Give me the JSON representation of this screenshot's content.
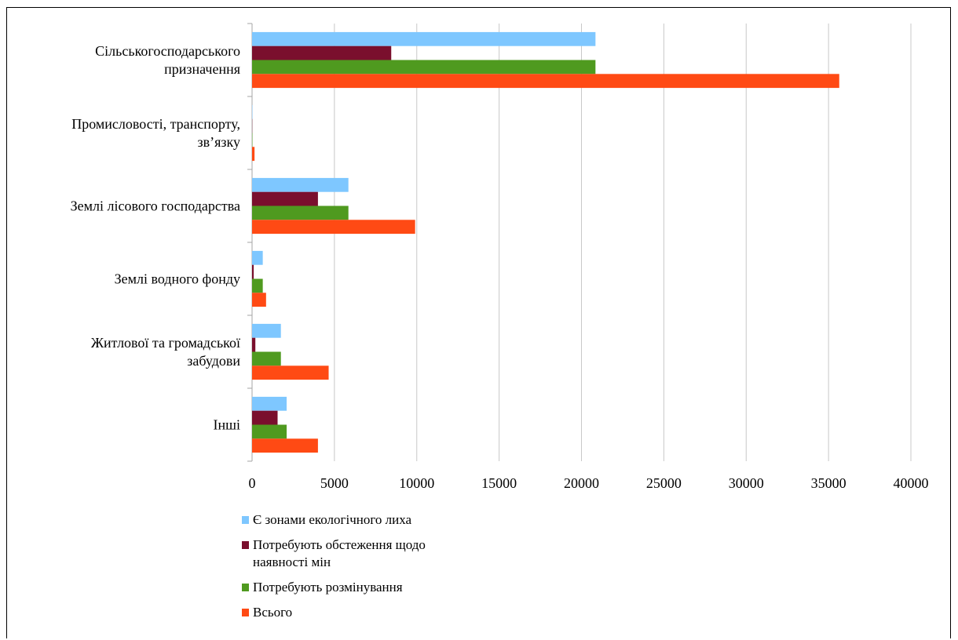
{
  "chart_data": {
    "type": "bar",
    "orientation": "horizontal",
    "categories": [
      [
        "Сільськогосподарського",
        "призначення"
      ],
      [
        "Промисловості, транспорту,",
        "зв’язку"
      ],
      [
        "Землі лісового господарства"
      ],
      [
        "Землі водного фонду"
      ],
      [
        "Житлової та громадської",
        "забудови"
      ],
      [
        "Інші"
      ]
    ],
    "series": [
      {
        "name": "Є зонами екологічного лиха",
        "color": "#7ec7ff",
        "values": [
          20850,
          20,
          5850,
          650,
          1750,
          2100
        ]
      },
      {
        "name": "Потребують обстеження щодо наявності мін",
        "color": "#7a0f2d",
        "values": [
          8450,
          10,
          4000,
          100,
          200,
          1550
        ]
      },
      {
        "name": "Потребують розмінування",
        "color": "#4f9a1f",
        "values": [
          20850,
          20,
          5850,
          650,
          1750,
          2100
        ]
      },
      {
        "name": "Всього",
        "color": "#ff4a14",
        "values": [
          35650,
          150,
          9900,
          850,
          4650,
          4000
        ]
      }
    ],
    "xlim": [
      0,
      40000
    ],
    "xticks": [
      "0",
      "5000",
      "10000",
      "15000",
      "20000",
      "25000",
      "30000",
      "35000",
      "40000"
    ],
    "grid": true,
    "legend_position": "bottom"
  },
  "legend": {
    "items": [
      {
        "lines": [
          "Є зонами екологічного лиха"
        ],
        "color": "#7ec7ff"
      },
      {
        "lines": [
          "Потребують обстеження щодо",
          "наявності мін"
        ],
        "color": "#7a0f2d"
      },
      {
        "lines": [
          "Потребують розмінування"
        ],
        "color": "#4f9a1f"
      },
      {
        "lines": [
          "Всього"
        ],
        "color": "#ff4a14"
      }
    ]
  }
}
